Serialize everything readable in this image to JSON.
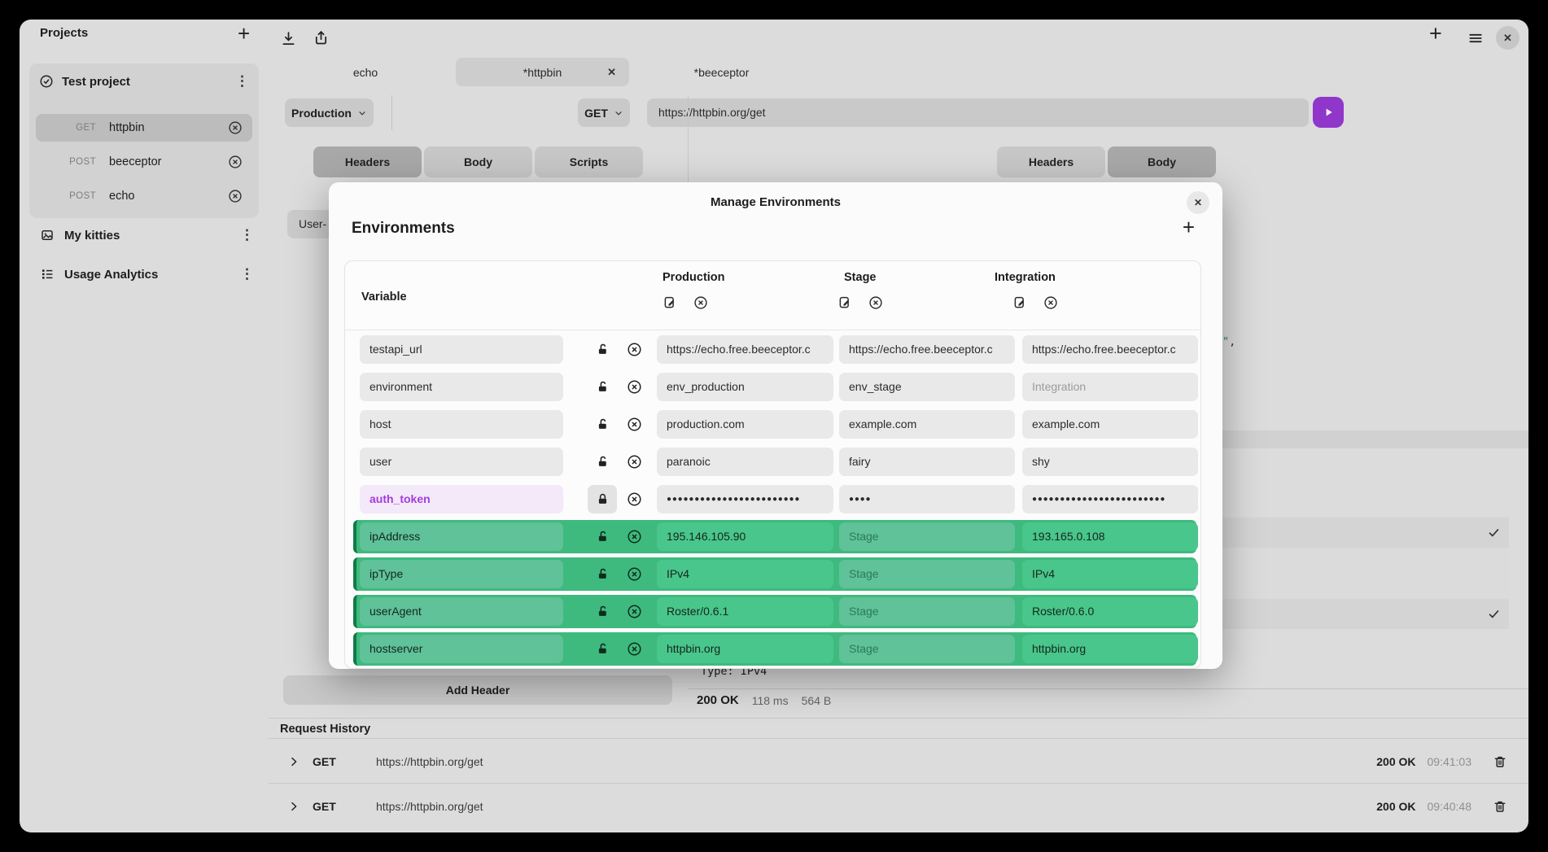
{
  "sidebar": {
    "title": "Projects",
    "groups": [
      {
        "name": "Test project",
        "requests": [
          {
            "method": "GET",
            "name": "httpbin"
          },
          {
            "method": "POST",
            "name": "beeceptor"
          },
          {
            "method": "POST",
            "name": "echo"
          }
        ]
      },
      {
        "name": "My kitties"
      },
      {
        "name": "Usage Analytics"
      }
    ]
  },
  "tabs": {
    "echo": "echo",
    "httpbin": "*httpbin",
    "beeceptor": "*beeceptor"
  },
  "request_bar": {
    "environment": "Production",
    "method": "GET",
    "url": "https://httpbin.org/get"
  },
  "request_tabs": {
    "headers": "Headers",
    "body": "Body",
    "scripts": "Scripts"
  },
  "response_tabs": {
    "headers": "Headers",
    "body": "Body"
  },
  "request_pane": {
    "header_name_partial": "User-",
    "add_header": "Add Header"
  },
  "response": {
    "body_line": "Type: IPv4",
    "tail_quote": "\"",
    "tail_comma": ",",
    "status": "200 OK",
    "time": "118 ms",
    "size": "564 B"
  },
  "modal": {
    "title": "Manage Environments",
    "section": "Environments",
    "columns": {
      "variable": "Variable",
      "envs": [
        "Production",
        "Stage",
        "Integration"
      ]
    },
    "rows": [
      {
        "name": "testapi_url",
        "kind": "normal",
        "locked": false,
        "values": [
          {
            "text": "https://echo.free.beeceptor.c"
          },
          {
            "text": "https://echo.free.beeceptor.c"
          },
          {
            "text": "https://echo.free.beeceptor.c"
          }
        ]
      },
      {
        "name": "environment",
        "kind": "normal",
        "locked": false,
        "values": [
          {
            "text": "env_production"
          },
          {
            "text": "env_stage"
          },
          {
            "text": "Integration",
            "placeholder": true
          }
        ]
      },
      {
        "name": "host",
        "kind": "normal",
        "locked": false,
        "values": [
          {
            "text": "production.com"
          },
          {
            "text": "example.com"
          },
          {
            "text": "example.com"
          }
        ]
      },
      {
        "name": "user",
        "kind": "normal",
        "locked": false,
        "values": [
          {
            "text": "paranoic"
          },
          {
            "text": "fairy"
          },
          {
            "text": "shy"
          }
        ]
      },
      {
        "name": "auth_token",
        "kind": "secret",
        "locked": true,
        "values": [
          {
            "text": "●●●●●●●●●●●●●●●●●●●●●●●●",
            "masked": true
          },
          {
            "text": "●●●●",
            "masked": true
          },
          {
            "text": "●●●●●●●●●●●●●●●●●●●●●●●●",
            "masked": true
          }
        ]
      },
      {
        "name": "ipAddress",
        "kind": "green",
        "locked": false,
        "values": [
          {
            "text": "195.146.105.90"
          },
          {
            "text": "Stage",
            "placeholder": true
          },
          {
            "text": "193.165.0.108"
          }
        ]
      },
      {
        "name": "ipType",
        "kind": "green",
        "locked": false,
        "values": [
          {
            "text": "IPv4"
          },
          {
            "text": "Stage",
            "placeholder": true
          },
          {
            "text": "IPv4"
          }
        ]
      },
      {
        "name": "userAgent",
        "kind": "green",
        "locked": false,
        "values": [
          {
            "text": "Roster/0.6.1"
          },
          {
            "text": "Stage",
            "placeholder": true
          },
          {
            "text": "Roster/0.6.0"
          }
        ]
      },
      {
        "name": "hostserver",
        "kind": "green",
        "locked": false,
        "values": [
          {
            "text": "httpbin.org"
          },
          {
            "text": "Stage",
            "placeholder": true
          },
          {
            "text": "httpbin.org"
          }
        ]
      }
    ]
  },
  "history": {
    "title": "Request History",
    "rows": [
      {
        "method": "GET",
        "url": "https://httpbin.org/get",
        "status": "200 OK",
        "time": "09:41:03"
      },
      {
        "method": "GET",
        "url": "https://httpbin.org/get",
        "status": "200 OK",
        "time": "09:40:48"
      }
    ]
  }
}
